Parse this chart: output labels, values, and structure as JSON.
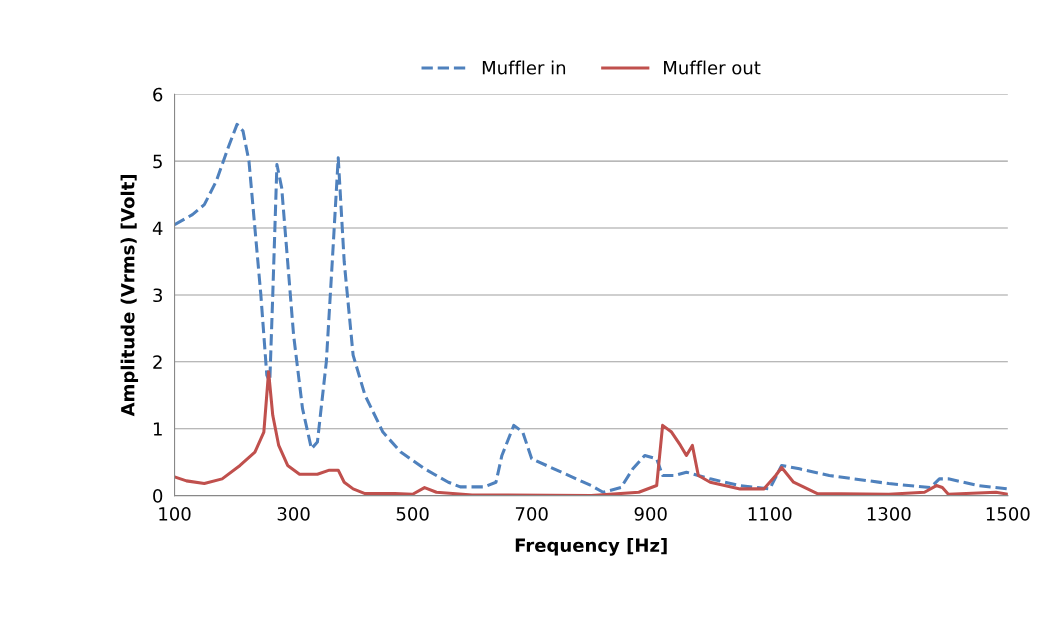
{
  "chart_data": {
    "type": "line",
    "xlabel": "Frequency [Hz]",
    "ylabel": "Amplitude (Vrms) [Volt]",
    "xlim": [
      100,
      1500
    ],
    "xticks": [
      100,
      300,
      500,
      700,
      900,
      1100,
      1300,
      1500
    ],
    "ylim": [
      0,
      6
    ],
    "yticks": [
      0,
      1,
      2,
      3,
      4,
      5,
      6
    ],
    "grid": "y",
    "legend": "top",
    "marker": "none",
    "series": [
      {
        "name": "Muffler in",
        "color": "#4f81bd",
        "line_style": "dashed",
        "x": [
          100,
          130,
          150,
          170,
          190,
          205,
          215,
          225,
          235,
          245,
          255,
          260,
          265,
          272,
          280,
          290,
          300,
          315,
          330,
          340,
          355,
          365,
          375,
          385,
          400,
          420,
          450,
          480,
          520,
          560,
          580,
          620,
          640,
          650,
          670,
          685,
          700,
          750,
          800,
          820,
          850,
          870,
          890,
          910,
          920,
          940,
          960,
          1000,
          1050,
          1100,
          1120,
          1150,
          1200,
          1300,
          1370,
          1385,
          1400,
          1450,
          1500
        ],
        "values": [
          4.05,
          4.2,
          4.35,
          4.7,
          5.2,
          5.55,
          5.45,
          5.0,
          4.0,
          3.0,
          1.8,
          1.7,
          3.0,
          4.95,
          4.6,
          3.5,
          2.4,
          1.3,
          0.7,
          0.8,
          2.0,
          3.5,
          5.05,
          3.5,
          2.1,
          1.5,
          0.95,
          0.65,
          0.4,
          0.2,
          0.13,
          0.13,
          0.2,
          0.6,
          1.05,
          0.95,
          0.55,
          0.35,
          0.15,
          0.05,
          0.12,
          0.4,
          0.6,
          0.55,
          0.3,
          0.3,
          0.35,
          0.25,
          0.15,
          0.1,
          0.45,
          0.4,
          0.3,
          0.18,
          0.12,
          0.25,
          0.25,
          0.15,
          0.1
        ]
      },
      {
        "name": "Muffler out",
        "color": "#c0504d",
        "line_style": "solid",
        "x": [
          100,
          120,
          150,
          180,
          210,
          235,
          250,
          258,
          265,
          275,
          290,
          310,
          340,
          360,
          375,
          385,
          400,
          420,
          470,
          500,
          520,
          540,
          600,
          800,
          880,
          910,
          920,
          935,
          950,
          960,
          970,
          980,
          1000,
          1050,
          1090,
          1110,
          1120,
          1140,
          1180,
          1300,
          1360,
          1380,
          1390,
          1400,
          1480,
          1500
        ],
        "values": [
          0.28,
          0.22,
          0.18,
          0.25,
          0.45,
          0.65,
          0.95,
          1.85,
          1.2,
          0.75,
          0.45,
          0.32,
          0.32,
          0.38,
          0.38,
          0.2,
          0.1,
          0.03,
          0.03,
          0.02,
          0.12,
          0.05,
          0.01,
          0.0,
          0.05,
          0.15,
          1.05,
          0.95,
          0.75,
          0.6,
          0.75,
          0.3,
          0.2,
          0.1,
          0.1,
          0.3,
          0.42,
          0.2,
          0.03,
          0.02,
          0.05,
          0.15,
          0.12,
          0.02,
          0.05,
          0.02
        ]
      }
    ]
  }
}
